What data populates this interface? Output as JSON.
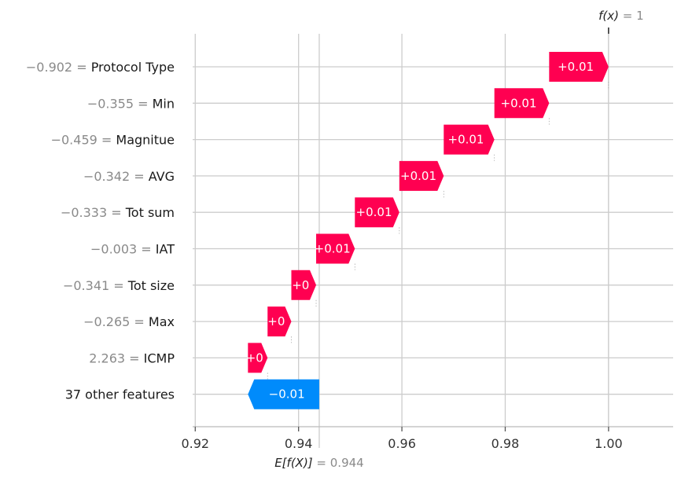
{
  "chart_data": {
    "type": "waterfall",
    "base_value": 0.944,
    "base_label_prefix": "E[f(X)]",
    "base_label_value": "= 0.944",
    "output_value": 1,
    "output_label_prefix": "f(x)",
    "output_label_value": "= 1",
    "xlim": [
      0.9195,
      1.0125
    ],
    "ticks": [
      {
        "value": 0.92,
        "label": "0.92"
      },
      {
        "value": 0.94,
        "label": "0.94"
      },
      {
        "value": 0.96,
        "label": "0.96"
      },
      {
        "value": 0.98,
        "label": "0.98"
      },
      {
        "value": 1.0,
        "label": "1.00"
      }
    ],
    "colors": {
      "positive": "#ff0051",
      "negative": "#008bfb",
      "grid": "#cccccc",
      "axis": "#bbbbbb"
    },
    "features": [
      {
        "value_text": "−0.902 =",
        "name": "Protocol Type",
        "start": 0.9885,
        "end": 1.0,
        "label": "+0.01"
      },
      {
        "value_text": "−0.355 =",
        "name": "Min",
        "start": 0.9779,
        "end": 0.9885,
        "label": "+0.01"
      },
      {
        "value_text": "−0.459 =",
        "name": "Magnitue",
        "start": 0.9681,
        "end": 0.9779,
        "label": "+0.01"
      },
      {
        "value_text": "−0.342 =",
        "name": "AVG",
        "start": 0.9595,
        "end": 0.9681,
        "label": "+0.01"
      },
      {
        "value_text": "−0.333 =",
        "name": "Tot sum",
        "start": 0.9509,
        "end": 0.9595,
        "label": "+0.01"
      },
      {
        "value_text": "−0.003 =",
        "name": "IAT",
        "start": 0.9434,
        "end": 0.9509,
        "label": "+0.01"
      },
      {
        "value_text": "−0.341 =",
        "name": "Tot size",
        "start": 0.9386,
        "end": 0.9434,
        "label": "+0"
      },
      {
        "value_text": "−0.265 =",
        "name": "Max",
        "start": 0.934,
        "end": 0.9386,
        "label": "+0"
      },
      {
        "value_text": "2.263 =",
        "name": "ICMP",
        "start": 0.9302,
        "end": 0.934,
        "label": "+0"
      },
      {
        "value_text": "",
        "name": "37 other features",
        "start": 0.944,
        "end": 0.9302,
        "label": "−0.01"
      }
    ]
  }
}
